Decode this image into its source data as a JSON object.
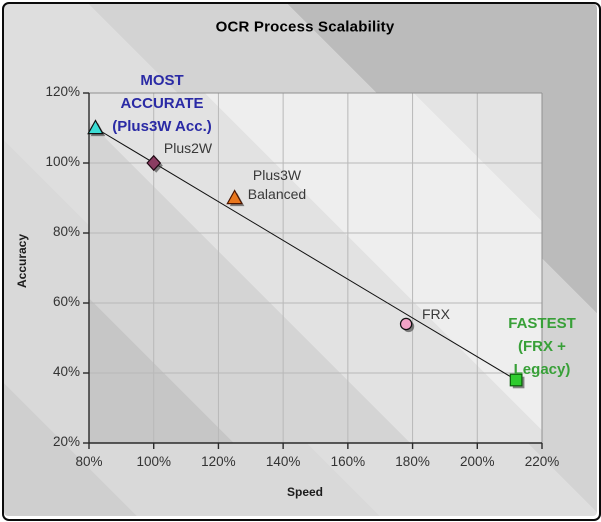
{
  "title": "OCR Process Scalability",
  "colors": {
    "annotation_blue": "#2A2AA5",
    "annotation_green": "#38A038",
    "label_gray": "#383838",
    "tick_label": "#333333",
    "gridline": "#b8b8b8",
    "axis_dark": "#2a2a2a",
    "border_light": "#909090",
    "trendline": "#101010"
  },
  "chart_data": {
    "type": "scatter",
    "title": "OCR Process Scalability",
    "xlabel": "Speed",
    "ylabel": "Accuracy",
    "xlim": [
      80,
      220
    ],
    "ylim": [
      20,
      120
    ],
    "grid": true,
    "legend": "none",
    "x_ticks": [
      {
        "value": 80,
        "label": "80%"
      },
      {
        "value": 100,
        "label": "100%"
      },
      {
        "value": 120,
        "label": "120%"
      },
      {
        "value": 140,
        "label": "140%"
      },
      {
        "value": 160,
        "label": "160%"
      },
      {
        "value": 180,
        "label": "180%"
      },
      {
        "value": 200,
        "label": "200%"
      },
      {
        "value": 220,
        "label": "220%"
      }
    ],
    "y_ticks": [
      {
        "value": 120,
        "label": "120%"
      },
      {
        "value": 100,
        "label": "100%"
      },
      {
        "value": 80,
        "label": "80%"
      },
      {
        "value": 60,
        "label": "60%"
      },
      {
        "value": 40,
        "label": "40%"
      },
      {
        "value": 20,
        "label": "20%"
      }
    ],
    "series": [
      {
        "name": "Plus3W Acc.",
        "x": 82,
        "y": 110,
        "marker": "triangle",
        "fill": "#3CDCD4",
        "stroke": "#101010"
      },
      {
        "name": "Plus2W",
        "x": 100,
        "y": 100,
        "marker": "diamond",
        "fill": "#8B3D62",
        "stroke": "#1f0a14"
      },
      {
        "name": "Plus3W Balanced",
        "x": 125,
        "y": 90,
        "marker": "triangle",
        "fill": "#E9771E",
        "stroke": "#4a1400"
      },
      {
        "name": "FRX",
        "x": 178,
        "y": 54,
        "marker": "circle",
        "fill": "#F2A3C6",
        "stroke": "#101010"
      },
      {
        "name": "FRX + Legacy",
        "x": 212,
        "y": 38,
        "marker": "square",
        "fill": "#2ECC2E",
        "stroke": "#0a5c0a"
      }
    ],
    "trendline": {
      "x1": 82,
      "y1": 110,
      "x2": 212,
      "y2": 38
    },
    "annotations": [
      {
        "name": "most-accurate",
        "lines": [
          "MOST",
          "ACCURATE",
          "(Plus3W Acc.)"
        ],
        "color": "#2A2AA5",
        "bold": true
      },
      {
        "name": "fastest",
        "lines": [
          "FASTEST",
          "(FRX +",
          "Legacy)"
        ],
        "color": "#38A038",
        "bold": true
      },
      {
        "name": "plus2w",
        "lines": [
          "Plus2W"
        ],
        "color": "#383838",
        "bold": false
      },
      {
        "name": "plus3w-balanced",
        "lines": [
          "Plus3W",
          "Balanced"
        ],
        "color": "#383838",
        "bold": false
      },
      {
        "name": "frx",
        "lines": [
          "FRX"
        ],
        "color": "#383838",
        "bold": false
      }
    ]
  }
}
